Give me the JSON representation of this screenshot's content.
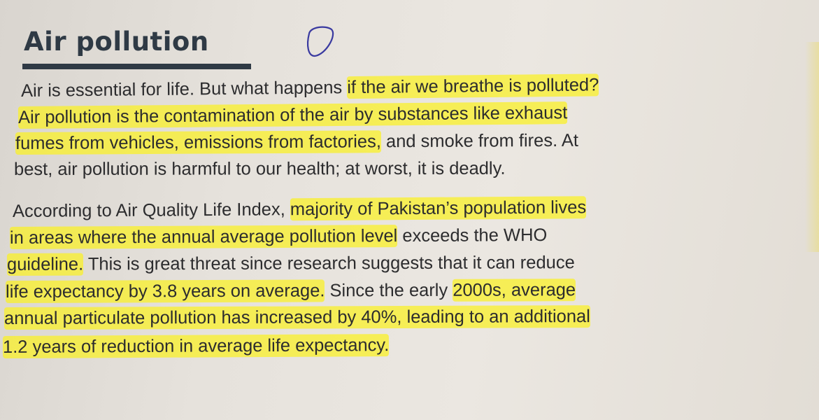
{
  "heading": "Air pollution",
  "accent_colors": {
    "highlight": "#f7ec2a",
    "heading": "#2f3a45",
    "pen_mark": "#3a3aa0"
  },
  "handwritten_mark": "circle-shape",
  "paragraph1": [
    [
      {
        "t": "Air is essential for life. But what happens ",
        "h": false
      },
      {
        "t": "if the air we breathe is polluted?",
        "h": true
      }
    ],
    [
      {
        "t": "Air pollution is the contamination of the air by substances like exhaust",
        "h": true
      }
    ],
    [
      {
        "t": "fumes from vehicles, emissions from factories,",
        "h": true
      },
      {
        "t": " and smoke from fires. At",
        "h": false
      }
    ],
    [
      {
        "t": "best, air pollution is harmful to our health; at worst, it is deadly.",
        "h": false
      }
    ]
  ],
  "paragraph2": [
    [
      {
        "t": "According to Air Quality Life Index, ",
        "h": false
      },
      {
        "t": "majority of Pakistan’s population lives",
        "h": true
      }
    ],
    [
      {
        "t": "in areas where the annual average pollution level",
        "h": true
      },
      {
        "t": " exceeds the WHO",
        "h": false
      }
    ],
    [
      {
        "t": "guideline.",
        "h": true
      },
      {
        "t": " This is great threat since research suggests that it can reduce",
        "h": false
      }
    ],
    [
      {
        "t": "life expectancy by 3.8 years on average.",
        "h": true
      },
      {
        "t": " Since the early ",
        "h": false
      },
      {
        "t": "2000s, average",
        "h": true
      }
    ],
    [
      {
        "t": "annual particulate pollution has increased by 40%, leading to an additional",
        "h": true
      }
    ],
    [
      {
        "t": "1.2 years of reduction in average life expectancy.",
        "h": true
      }
    ]
  ]
}
